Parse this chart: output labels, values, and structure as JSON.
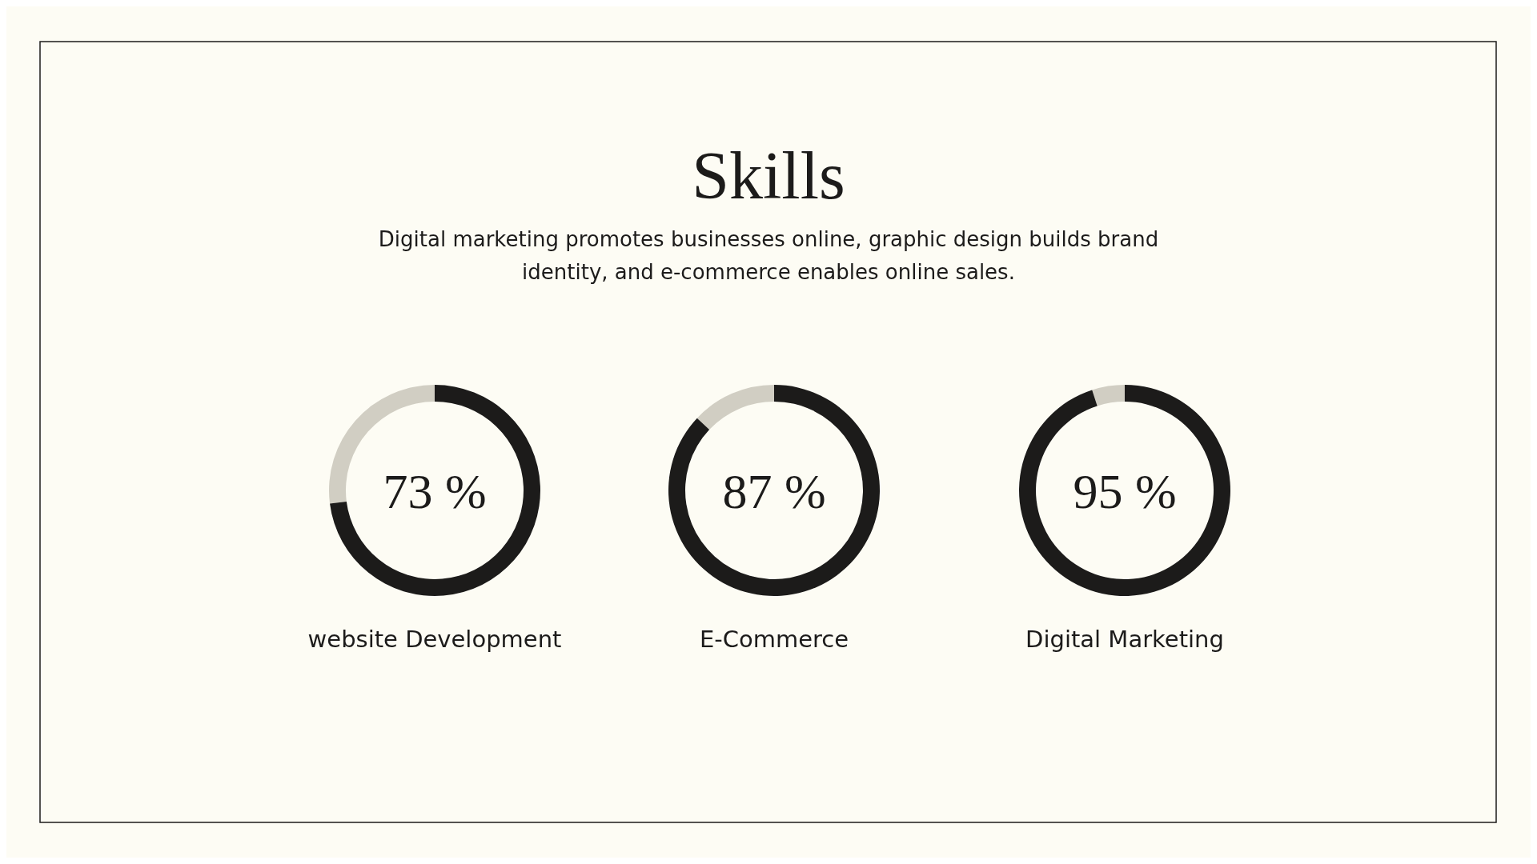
{
  "chart_data": [
    {
      "type": "other",
      "title": "Skills",
      "subtitle": "Digital marketing promotes businesses online, graphic design builds brand identity, and e-commerce enables online sales."
    },
    {
      "type": "donut",
      "title": "website Development",
      "categories": [
        null,
        null
      ],
      "values": [
        73,
        27
      ],
      "colors": [
        "#1c1b1a",
        "#d1cec3"
      ],
      "value_labels": [
        "73 %",
        null
      ]
    },
    {
      "type": "donut",
      "title": "E-Commerce",
      "categories": [
        null,
        null
      ],
      "values": [
        87,
        13
      ],
      "colors": [
        "#1c1b1a",
        "#d1cec3"
      ],
      "value_labels": [
        "87 %",
        null
      ]
    },
    {
      "type": "donut",
      "title": "Digital Marketing",
      "categories": [
        null,
        null
      ],
      "values": [
        95,
        5
      ],
      "colors": [
        "#1c1b1a",
        "#d1cec3"
      ],
      "value_labels": [
        "95 %",
        null
      ]
    }
  ]
}
